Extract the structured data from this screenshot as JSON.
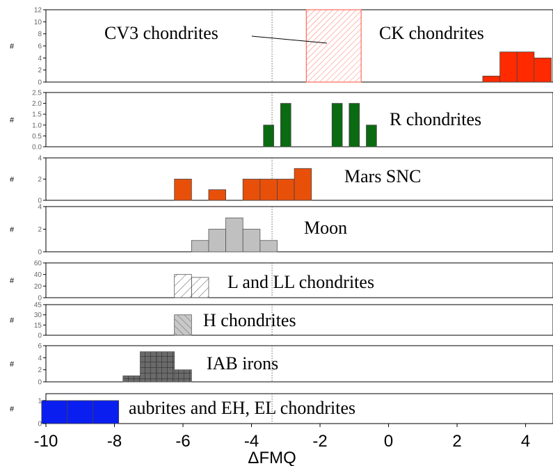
{
  "chart_data": {
    "type": "bar",
    "xlabel": "ΔFMQ",
    "xlim": [
      -10,
      4.8
    ],
    "x_ticks": [
      -10,
      -8,
      -6,
      -4,
      -2,
      0,
      2,
      4
    ],
    "x_tick_labels": [
      "-10",
      "-8",
      "-6",
      "-4",
      "-2",
      "0",
      "2",
      "4"
    ],
    "reference_line_x": -3.4,
    "bin_width": 0.5,
    "panels": [
      {
        "label": "CK chondrites",
        "ylabel": "#",
        "ylim": [
          0,
          12
        ],
        "y_ticks": [
          0,
          2,
          4,
          6,
          8,
          10,
          12
        ],
        "y_tick_labels": [
          "0",
          "2",
          "4",
          "6",
          "8",
          "10",
          "12"
        ],
        "fill": "#ff2a00",
        "pattern": "solid",
        "bins": [
          {
            "x": 3.0,
            "count": 1
          },
          {
            "x": 3.5,
            "count": 5
          },
          {
            "x": 4.0,
            "count": 5
          },
          {
            "x": 4.5,
            "count": 4
          }
        ],
        "annotation": {
          "label": "CV3 chondrites",
          "range": [
            -2.4,
            -0.8
          ],
          "color": "#ff6a5a"
        }
      },
      {
        "label": "R chondrites",
        "ylabel": "#",
        "ylim": [
          0,
          2.5
        ],
        "y_ticks": [
          0,
          0.5,
          1,
          1.5,
          2,
          2.5
        ],
        "y_tick_labels": [
          "0.0",
          "0.5",
          "1.0",
          "1.5",
          "2.0",
          "2.5"
        ],
        "fill": "#0b6b12",
        "pattern": "solid",
        "bar_width": 0.3,
        "bins": [
          {
            "x": -3.5,
            "count": 1
          },
          {
            "x": -3.0,
            "count": 2
          },
          {
            "x": -1.5,
            "count": 2
          },
          {
            "x": -1.0,
            "count": 2
          },
          {
            "x": -0.5,
            "count": 1
          }
        ]
      },
      {
        "label": "Mars SNC",
        "ylabel": "#",
        "ylim": [
          0,
          4
        ],
        "y_ticks": [
          0,
          2,
          4
        ],
        "y_tick_labels": [
          "0",
          "2",
          "4"
        ],
        "fill": "#e8500a",
        "pattern": "solid",
        "bins": [
          {
            "x": -6.0,
            "count": 2
          },
          {
            "x": -5.0,
            "count": 1
          },
          {
            "x": -4.0,
            "count": 2
          },
          {
            "x": -3.5,
            "count": 2
          },
          {
            "x": -3.0,
            "count": 2
          },
          {
            "x": -2.5,
            "count": 3
          }
        ]
      },
      {
        "label": "Moon",
        "ylabel": "#",
        "ylim": [
          0,
          4
        ],
        "y_ticks": [
          0,
          2,
          4
        ],
        "y_tick_labels": [
          "0",
          "2",
          "4"
        ],
        "fill": "#c0c0c0",
        "pattern": "solid",
        "bins": [
          {
            "x": -5.5,
            "count": 1
          },
          {
            "x": -5.0,
            "count": 2
          },
          {
            "x": -4.5,
            "count": 3
          },
          {
            "x": -4.0,
            "count": 2
          },
          {
            "x": -3.5,
            "count": 1
          }
        ]
      },
      {
        "label": "L and LL chondrites",
        "ylabel": "#",
        "ylim": [
          0,
          60
        ],
        "y_ticks": [
          0,
          20,
          40,
          60
        ],
        "y_tick_labels": [
          "0",
          "20",
          "40",
          "60"
        ],
        "fill": "#ffffff",
        "pattern": "diagonal",
        "bins": [
          {
            "x": -6.0,
            "count": 40
          },
          {
            "x": -5.5,
            "count": 35
          }
        ]
      },
      {
        "label": "H chondrites",
        "ylabel": "#",
        "ylim": [
          0,
          45
        ],
        "y_ticks": [
          0,
          15,
          30,
          45
        ],
        "y_tick_labels": [
          "0",
          "15",
          "30",
          "45"
        ],
        "fill": "#c8c8c8",
        "pattern": "backdiagonal",
        "bins": [
          {
            "x": -6.0,
            "count": 30
          }
        ]
      },
      {
        "label": "IAB irons",
        "ylabel": "#",
        "ylim": [
          0,
          6
        ],
        "y_ticks": [
          0,
          2,
          4,
          6
        ],
        "y_tick_labels": [
          "0",
          "2",
          "4",
          "6"
        ],
        "fill": "#6a6a6a",
        "pattern": "grid",
        "bins": [
          {
            "x": -7.5,
            "count": 1
          },
          {
            "x": -7.0,
            "count": 5
          },
          {
            "x": -6.5,
            "count": 5
          },
          {
            "x": -6.0,
            "count": 2
          }
        ]
      },
      {
        "label": "aubrites and EH, EL chondrites",
        "ylabel": "#",
        "ylim": [
          0,
          1.3
        ],
        "y_ticks": [
          0,
          1
        ],
        "y_tick_labels": [
          "0",
          "1"
        ],
        "fill": "#0a1ef0",
        "pattern": "solid",
        "bins": [
          {
            "x": -9.75,
            "count": 1
          },
          {
            "x": -9.0,
            "count": 1
          },
          {
            "x": -8.25,
            "count": 1
          }
        ],
        "bin_width": 0.75
      }
    ]
  }
}
